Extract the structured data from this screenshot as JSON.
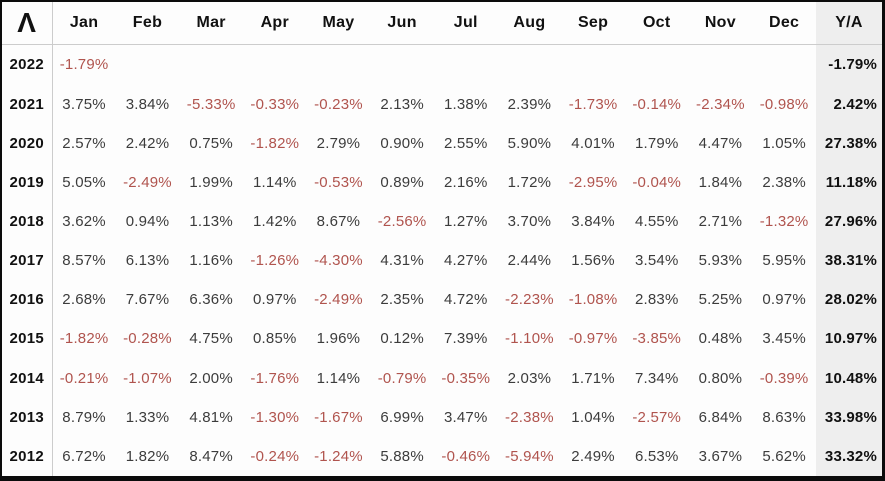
{
  "logo_glyph": "Λ",
  "chart_data": {
    "type": "table",
    "month_columns": [
      "Jan",
      "Feb",
      "Mar",
      "Apr",
      "May",
      "Jun",
      "Jul",
      "Aug",
      "Sep",
      "Oct",
      "Nov",
      "Dec"
    ],
    "annual_column": "Y/A",
    "rows": [
      {
        "year": "2022",
        "months": [
          "-1.79%",
          "",
          "",
          "",
          "",
          "",
          "",
          "",
          "",
          "",
          "",
          ""
        ],
        "annual": "-1.79%"
      },
      {
        "year": "2021",
        "months": [
          "3.75%",
          "3.84%",
          "-5.33%",
          "-0.33%",
          "-0.23%",
          "2.13%",
          "1.38%",
          "2.39%",
          "-1.73%",
          "-0.14%",
          "-2.34%",
          "-0.98%"
        ],
        "annual": "2.42%"
      },
      {
        "year": "2020",
        "months": [
          "2.57%",
          "2.42%",
          "0.75%",
          "-1.82%",
          "2.79%",
          "0.90%",
          "2.55%",
          "5.90%",
          "4.01%",
          "1.79%",
          "4.47%",
          "1.05%"
        ],
        "annual": "27.38%"
      },
      {
        "year": "2019",
        "months": [
          "5.05%",
          "-2.49%",
          "1.99%",
          "1.14%",
          "-0.53%",
          "0.89%",
          "2.16%",
          "1.72%",
          "-2.95%",
          "-0.04%",
          "1.84%",
          "2.38%"
        ],
        "annual": "11.18%"
      },
      {
        "year": "2018",
        "months": [
          "3.62%",
          "0.94%",
          "1.13%",
          "1.42%",
          "8.67%",
          "-2.56%",
          "1.27%",
          "3.70%",
          "3.84%",
          "4.55%",
          "2.71%",
          "-1.32%"
        ],
        "annual": "27.96%"
      },
      {
        "year": "2017",
        "months": [
          "8.57%",
          "6.13%",
          "1.16%",
          "-1.26%",
          "-4.30%",
          "4.31%",
          "4.27%",
          "2.44%",
          "1.56%",
          "3.54%",
          "5.93%",
          "5.95%"
        ],
        "annual": "38.31%"
      },
      {
        "year": "2016",
        "months": [
          "2.68%",
          "7.67%",
          "6.36%",
          "0.97%",
          "-2.49%",
          "2.35%",
          "4.72%",
          "-2.23%",
          "-1.08%",
          "2.83%",
          "5.25%",
          "0.97%"
        ],
        "annual": "28.02%"
      },
      {
        "year": "2015",
        "months": [
          "-1.82%",
          "-0.28%",
          "4.75%",
          "0.85%",
          "1.96%",
          "0.12%",
          "7.39%",
          "-1.10%",
          "-0.97%",
          "-3.85%",
          "0.48%",
          "3.45%"
        ],
        "annual": "10.97%"
      },
      {
        "year": "2014",
        "months": [
          "-0.21%",
          "-1.07%",
          "2.00%",
          "-1.76%",
          "1.14%",
          "-0.79%",
          "-0.35%",
          "2.03%",
          "1.71%",
          "7.34%",
          "0.80%",
          "-0.39%"
        ],
        "annual": "10.48%"
      },
      {
        "year": "2013",
        "months": [
          "8.79%",
          "1.33%",
          "4.81%",
          "-1.30%",
          "-1.67%",
          "6.99%",
          "3.47%",
          "-2.38%",
          "1.04%",
          "-2.57%",
          "6.84%",
          "8.63%"
        ],
        "annual": "33.98%"
      },
      {
        "year": "2012",
        "months": [
          "6.72%",
          "1.82%",
          "8.47%",
          "-0.24%",
          "-1.24%",
          "5.88%",
          "-0.46%",
          "-5.94%",
          "2.49%",
          "6.53%",
          "3.67%",
          "5.62%"
        ],
        "annual": "33.32%"
      }
    ]
  },
  "colors": {
    "negative_text": "#b0544e",
    "positive_text": "#3c3c3c",
    "bold_text": "#111111",
    "annual_col_bg": "#eeeeee",
    "grid_line": "#cccccc",
    "frame_border": "#0b0b0b",
    "background": "#fdfdfd"
  }
}
